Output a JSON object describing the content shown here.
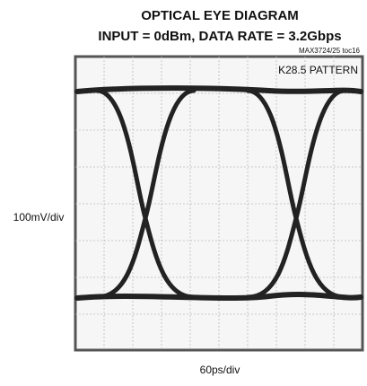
{
  "title_lines": [
    "OPTICAL EYE DIAGRAM",
    "INPUT = 0dBm, DATA RATE = 3.2Gbps"
  ],
  "figure_id": "MAX3724/25 toc16",
  "annotation": "K28.5 PATTERN",
  "y_scale": "100mV/div",
  "x_scale": "60ps/div"
}
